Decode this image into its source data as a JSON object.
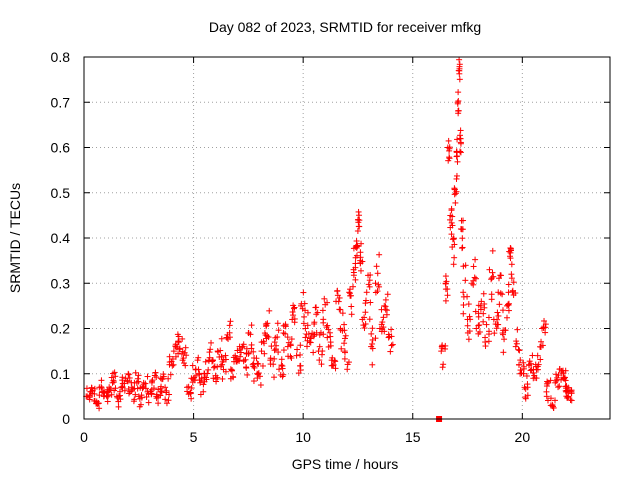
{
  "chart_data": {
    "type": "scatter",
    "title": "Day 082 of 2023, SRMTID for receiver mfkg",
    "xlabel": "GPS time / hours",
    "ylabel": "SRMTID / TECUs",
    "xlim": [
      0,
      24
    ],
    "ylim": [
      0,
      0.8
    ],
    "xticks": [
      0,
      5,
      10,
      15,
      20
    ],
    "xtick_labels": [
      "0",
      "5",
      "10",
      "15",
      "20"
    ],
    "yticks": [
      0,
      0.1,
      0.2,
      0.3,
      0.4,
      0.5,
      0.6,
      0.7,
      0.8
    ],
    "ytick_labels": [
      "0",
      "0.1",
      "0.2",
      "0.3",
      "0.4",
      "0.5",
      "0.6",
      "0.7",
      "0.8"
    ],
    "grid": true,
    "marker": "+",
    "color": "#ff0000",
    "series": [
      {
        "name": "SRMTID",
        "x": [
          0.1,
          0.3,
          0.5,
          0.7,
          0.9,
          1.1,
          1.3,
          1.5,
          1.7,
          1.9,
          2.1,
          2.3,
          2.5,
          2.7,
          2.9,
          3.1,
          3.3,
          3.5,
          3.7,
          3.9,
          4.1,
          4.3,
          4.5,
          4.7,
          4.9,
          5.1,
          5.3,
          5.5,
          5.7,
          5.9,
          6.1,
          6.3,
          6.5,
          6.7,
          6.9,
          7.1,
          7.3,
          7.5,
          7.7,
          7.9,
          8.1,
          8.3,
          8.5,
          8.7,
          8.9,
          9.1,
          9.3,
          9.5,
          9.7,
          9.9,
          10.1,
          10.3,
          10.5,
          10.7,
          10.9,
          11.1,
          11.3,
          11.5,
          11.7,
          11.9,
          12.1,
          12.3,
          12.4,
          12.5,
          12.6,
          12.7,
          12.9,
          13.1,
          13.3,
          13.5,
          13.7,
          13.9,
          16.3,
          16.5,
          16.6,
          16.7,
          16.8,
          16.9,
          17.0,
          17.05,
          17.1,
          17.15,
          17.2,
          17.3,
          17.5,
          17.7,
          17.9,
          18.1,
          18.3,
          18.5,
          18.7,
          18.9,
          19.1,
          19.3,
          19.4,
          19.5,
          19.7,
          19.9,
          20.1,
          20.3,
          20.5,
          20.7,
          20.9,
          21.1,
          21.3,
          21.5,
          21.7,
          21.9,
          22.0,
          22.1
        ],
        "y": [
          0.05,
          0.06,
          0.04,
          0.07,
          0.05,
          0.06,
          0.08,
          0.05,
          0.07,
          0.09,
          0.06,
          0.08,
          0.05,
          0.07,
          0.06,
          0.08,
          0.05,
          0.09,
          0.07,
          0.12,
          0.15,
          0.17,
          0.13,
          0.07,
          0.09,
          0.11,
          0.08,
          0.1,
          0.13,
          0.09,
          0.15,
          0.12,
          0.18,
          0.11,
          0.14,
          0.16,
          0.13,
          0.19,
          0.12,
          0.1,
          0.15,
          0.21,
          0.13,
          0.17,
          0.11,
          0.19,
          0.16,
          0.22,
          0.14,
          0.25,
          0.2,
          0.17,
          0.21,
          0.15,
          0.24,
          0.18,
          0.13,
          0.26,
          0.2,
          0.15,
          0.28,
          0.33,
          0.38,
          0.44,
          0.35,
          0.22,
          0.28,
          0.16,
          0.3,
          0.2,
          0.25,
          0.18,
          0.15,
          0.3,
          0.6,
          0.44,
          0.38,
          0.51,
          0.58,
          0.7,
          0.77,
          0.62,
          0.42,
          0.28,
          0.22,
          0.3,
          0.2,
          0.25,
          0.18,
          0.33,
          0.22,
          0.28,
          0.19,
          0.25,
          0.37,
          0.32,
          0.16,
          0.1,
          0.07,
          0.12,
          0.09,
          0.14,
          0.2,
          0.06,
          0.03,
          0.08,
          0.11,
          0.09,
          0.06,
          0.05
        ],
        "spread": [
          0.03,
          0.03,
          0.03,
          0.04,
          0.03,
          0.04,
          0.04,
          0.03,
          0.04,
          0.04,
          0.03,
          0.04,
          0.03,
          0.04,
          0.03,
          0.04,
          0.03,
          0.04,
          0.04,
          0.04,
          0.04,
          0.04,
          0.04,
          0.03,
          0.04,
          0.04,
          0.04,
          0.04,
          0.04,
          0.04,
          0.05,
          0.04,
          0.05,
          0.04,
          0.05,
          0.05,
          0.04,
          0.05,
          0.04,
          0.04,
          0.05,
          0.05,
          0.04,
          0.05,
          0.04,
          0.05,
          0.05,
          0.06,
          0.05,
          0.06,
          0.05,
          0.05,
          0.06,
          0.05,
          0.06,
          0.05,
          0.05,
          0.06,
          0.05,
          0.05,
          0.06,
          0.06,
          0.05,
          0.03,
          0.06,
          0.07,
          0.07,
          0.06,
          0.07,
          0.06,
          0.07,
          0.06,
          0.04,
          0.06,
          0.04,
          0.04,
          0.06,
          0.05,
          0.05,
          0.04,
          0.03,
          0.05,
          0.08,
          0.08,
          0.06,
          0.07,
          0.06,
          0.06,
          0.06,
          0.07,
          0.06,
          0.07,
          0.06,
          0.06,
          0.04,
          0.06,
          0.05,
          0.04,
          0.04,
          0.04,
          0.04,
          0.04,
          0.04,
          0.03,
          0.03,
          0.04,
          0.04,
          0.03,
          0.03,
          0.02
        ]
      }
    ],
    "extra_marker": {
      "x": 16.2,
      "y": 0.0,
      "shape": "square"
    }
  }
}
